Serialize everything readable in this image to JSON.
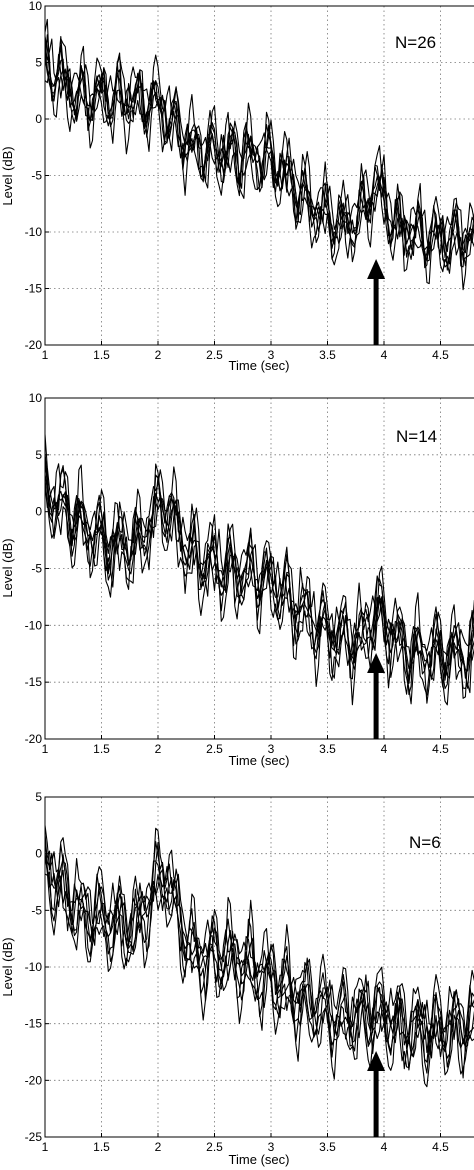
{
  "chart_data": [
    {
      "type": "line",
      "annotation": "N=26",
      "xlabel": "Time (sec)",
      "ylabel": "Level (dB)",
      "xlim": [
        1,
        4.8
      ],
      "ylim": [
        -20,
        10
      ],
      "xticks": [
        1,
        1.5,
        2,
        2.5,
        3,
        3.5,
        4,
        4.5
      ],
      "yticks": [
        10,
        5,
        0,
        -5,
        -10,
        -15,
        -20
      ],
      "grid": true,
      "arrow_at_x": 3.93,
      "envelope": {
        "x": [
          1.0,
          1.3,
          1.6,
          2.0,
          2.3,
          2.6,
          3.0,
          3.3,
          3.6,
          3.8,
          3.93,
          4.1,
          4.4,
          4.8
        ],
        "y": [
          5.0,
          2.0,
          2.0,
          1.5,
          -2.5,
          -3.0,
          -3.5,
          -7.0,
          -9.5,
          -8.5,
          -5.5,
          -9.5,
          -10.5,
          -10.5
        ]
      },
      "series": [
        {
          "seed": 11,
          "offset": 0.0
        },
        {
          "seed": 23,
          "offset": 0.8
        },
        {
          "seed": 37,
          "offset": -0.8
        },
        {
          "seed": 41,
          "offset": 1.4
        },
        {
          "seed": 53,
          "offset": -1.4
        },
        {
          "seed": 67,
          "offset": 0.4
        },
        {
          "seed": 79,
          "offset": -0.4
        }
      ]
    },
    {
      "type": "line",
      "annotation": "N=14",
      "xlabel": "Time (sec)",
      "ylabel": "Level (dB)",
      "xlim": [
        1,
        4.8
      ],
      "ylim": [
        -20,
        10
      ],
      "xticks": [
        1,
        1.5,
        2,
        2.5,
        3,
        3.5,
        4,
        4.5
      ],
      "yticks": [
        10,
        5,
        0,
        -5,
        -10,
        -15,
        -20
      ],
      "grid": true,
      "arrow_at_x": 3.93,
      "envelope": {
        "x": [
          1.0,
          1.3,
          1.6,
          1.8,
          2.05,
          2.3,
          2.6,
          3.0,
          3.3,
          3.6,
          3.8,
          3.93,
          4.2,
          4.5,
          4.8
        ],
        "y": [
          2.0,
          -1.0,
          -3.0,
          -3.0,
          1.0,
          -4.0,
          -5.0,
          -6.0,
          -9.0,
          -11.0,
          -11.5,
          -8.5,
          -12.5,
          -12.5,
          -12.5
        ]
      },
      "series": [
        {
          "seed": 13,
          "offset": 0.0
        },
        {
          "seed": 29,
          "offset": 0.9
        },
        {
          "seed": 31,
          "offset": -0.9
        },
        {
          "seed": 47,
          "offset": 1.6
        },
        {
          "seed": 59,
          "offset": -1.6
        },
        {
          "seed": 61,
          "offset": 0.5
        },
        {
          "seed": 71,
          "offset": -0.5
        }
      ]
    },
    {
      "type": "line",
      "annotation": "N=6",
      "xlabel": "Time (sec)",
      "ylabel": "Level (dB)",
      "xlim": [
        1,
        4.8
      ],
      "ylim": [
        -25,
        5
      ],
      "xticks": [
        1,
        1.5,
        2,
        2.5,
        3,
        3.5,
        4,
        4.5
      ],
      "yticks": [
        5,
        0,
        -5,
        -10,
        -15,
        -20,
        -25
      ],
      "grid": true,
      "arrow_at_x": 3.93,
      "envelope": {
        "x": [
          1.0,
          1.3,
          1.6,
          1.8,
          2.05,
          2.3,
          2.6,
          3.0,
          3.3,
          3.6,
          3.93,
          4.2,
          4.5,
          4.8
        ],
        "y": [
          -1.0,
          -5.0,
          -6.0,
          -6.5,
          -1.5,
          -9.0,
          -9.0,
          -11.0,
          -13.0,
          -14.5,
          -14.0,
          -15.5,
          -15.5,
          -15.0
        ]
      },
      "series": [
        {
          "seed": 17,
          "offset": 0.0
        },
        {
          "seed": 19,
          "offset": 1.2
        },
        {
          "seed": 43,
          "offset": -1.2
        },
        {
          "seed": 83,
          "offset": 2.0
        },
        {
          "seed": 89,
          "offset": -2.0
        },
        {
          "seed": 97,
          "offset": 0.6
        },
        {
          "seed": 101,
          "offset": -0.6
        }
      ]
    }
  ]
}
